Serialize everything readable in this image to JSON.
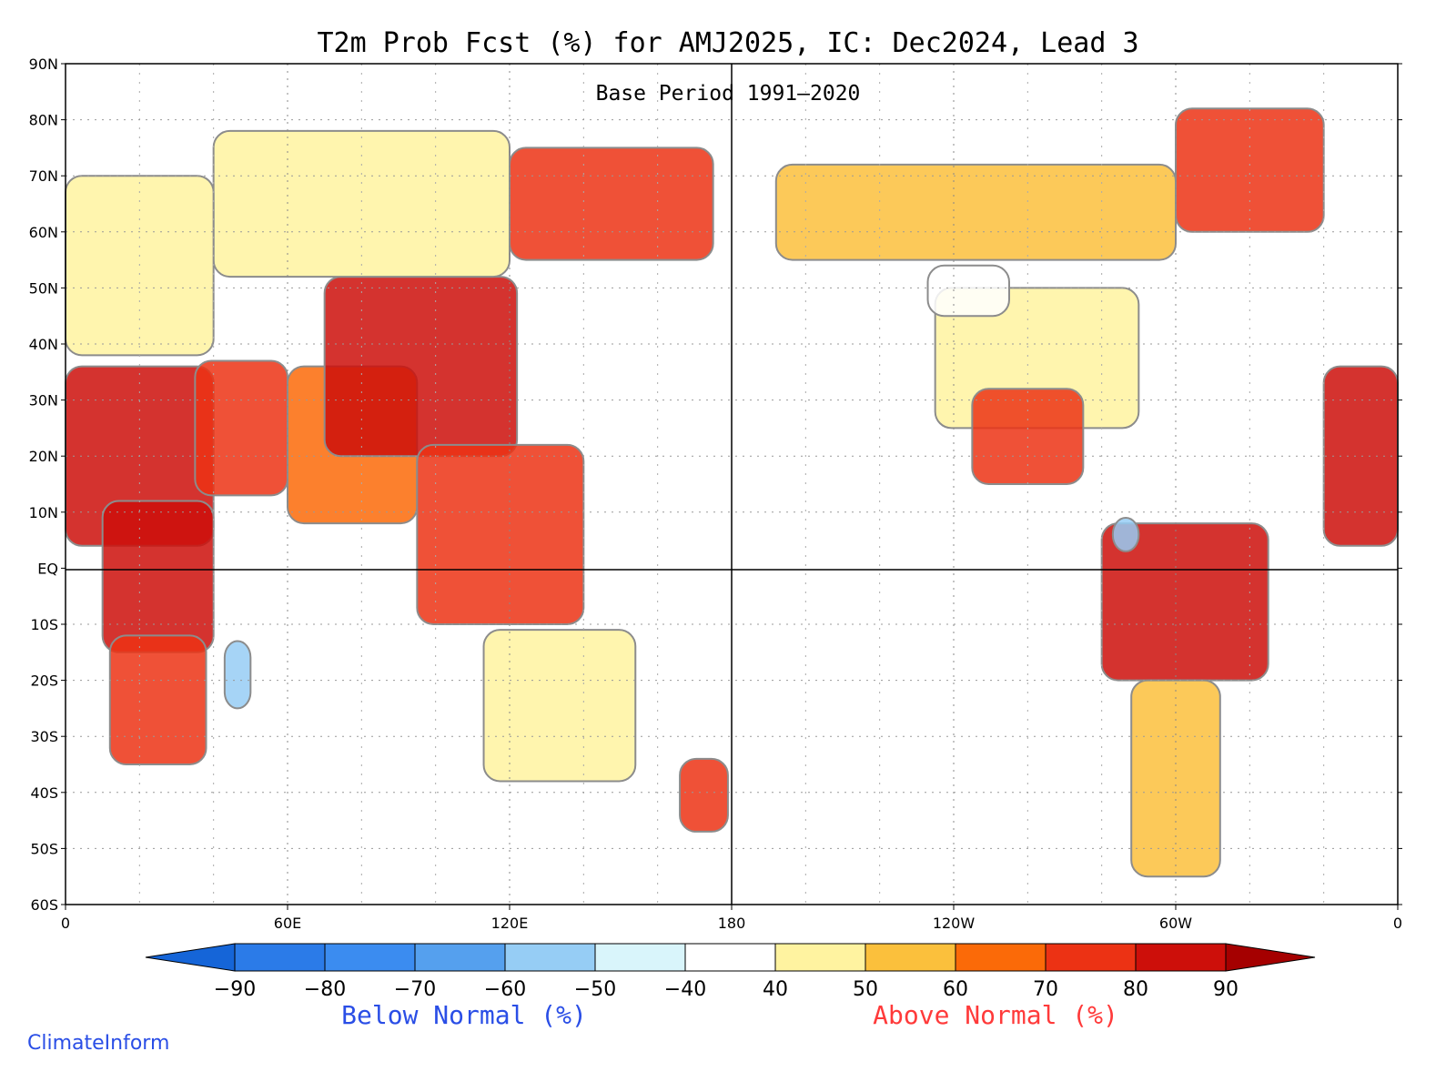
{
  "chart_data": {
    "type": "heatmap",
    "title": "T2m Prob Fcst (%) for AMJ2025, IC: Dec2024, Lead 3",
    "subtitle": "Base Period 1991–2020",
    "x_axis": {
      "range": [
        0,
        360
      ],
      "ticks": [
        {
          "lon": 0,
          "label": "0"
        },
        {
          "lon": 60,
          "label": "60E"
        },
        {
          "lon": 120,
          "label": "120E"
        },
        {
          "lon": 180,
          "label": "180"
        },
        {
          "lon": 240,
          "label": "120W"
        },
        {
          "lon": 300,
          "label": "60W"
        },
        {
          "lon": 360,
          "label": "0"
        }
      ]
    },
    "y_axis": {
      "range": [
        -60,
        90
      ],
      "ticks": [
        {
          "lat": 90,
          "label": "90N"
        },
        {
          "lat": 80,
          "label": "80N"
        },
        {
          "lat": 70,
          "label": "70N"
        },
        {
          "lat": 60,
          "label": "60N"
        },
        {
          "lat": 50,
          "label": "50N"
        },
        {
          "lat": 40,
          "label": "40N"
        },
        {
          "lat": 30,
          "label": "30N"
        },
        {
          "lat": 20,
          "label": "20N"
        },
        {
          "lat": 10,
          "label": "10N"
        },
        {
          "lat": 0,
          "label": "EQ"
        },
        {
          "lat": -10,
          "label": "10S"
        },
        {
          "lat": -20,
          "label": "20S"
        },
        {
          "lat": -30,
          "label": "30S"
        },
        {
          "lat": -40,
          "label": "40S"
        },
        {
          "lat": -50,
          "label": "50S"
        },
        {
          "lat": -60,
          "label": "60S"
        }
      ]
    },
    "colorbar": {
      "min_arrow_color": "#1565d8",
      "max_arrow_color": "#a50000",
      "bins": [
        {
          "from": -90,
          "to": -80,
          "color": "#2b7be8"
        },
        {
          "from": -80,
          "to": -70,
          "color": "#3b8cf0"
        },
        {
          "from": -70,
          "to": -60,
          "color": "#55a0ee"
        },
        {
          "from": -60,
          "to": -50,
          "color": "#96cdf5"
        },
        {
          "from": -50,
          "to": -40,
          "color": "#d9f5fb"
        },
        {
          "from": -40,
          "to": 40,
          "color": "#ffffff"
        },
        {
          "from": 40,
          "to": 50,
          "color": "#fff3a0"
        },
        {
          "from": 50,
          "to": 60,
          "color": "#fbc03c"
        },
        {
          "from": 60,
          "to": 70,
          "color": "#fb6a08"
        },
        {
          "from": 70,
          "to": 80,
          "color": "#ec3214"
        },
        {
          "from": 80,
          "to": 90,
          "color": "#cd0f0a"
        }
      ],
      "labels": [
        "−90",
        "−80",
        "−70",
        "−60",
        "−50",
        "−40",
        "40",
        "50",
        "60",
        "70",
        "80",
        "90"
      ],
      "below_label": "Below Normal (%)",
      "above_label": "Above Normal (%)",
      "below_color": "#2a4ee6",
      "above_color": "#ff3a3a"
    },
    "regions": [
      {
        "name": "west-africa-sahel",
        "lon": [
          0,
          40
        ],
        "lat": [
          4,
          36
        ],
        "category": 80
      },
      {
        "name": "central-africa",
        "lon": [
          10,
          40
        ],
        "lat": [
          -15,
          12
        ],
        "category": 80
      },
      {
        "name": "southern-africa",
        "lon": [
          12,
          38
        ],
        "lat": [
          -35,
          -12
        ],
        "category": 70
      },
      {
        "name": "arabia-middle-east",
        "lon": [
          35,
          60
        ],
        "lat": [
          13,
          37
        ],
        "category": 70
      },
      {
        "name": "india-pakistan",
        "lon": [
          60,
          95
        ],
        "lat": [
          8,
          36
        ],
        "category": 60
      },
      {
        "name": "china-central-asia",
        "lon": [
          70,
          122
        ],
        "lat": [
          20,
          52
        ],
        "category": 80
      },
      {
        "name": "southeast-asia",
        "lon": [
          95,
          140
        ],
        "lat": [
          -10,
          22
        ],
        "category": 70
      },
      {
        "name": "siberia-east",
        "lon": [
          120,
          175
        ],
        "lat": [
          55,
          75
        ],
        "category": 70
      },
      {
        "name": "northern-eurasia",
        "lon": [
          40,
          120
        ],
        "lat": [
          52,
          78
        ],
        "category": 40
      },
      {
        "name": "europe",
        "lon": [
          0,
          40
        ],
        "lat": [
          38,
          70
        ],
        "category": 40
      },
      {
        "name": "australia",
        "lon": [
          113,
          154
        ],
        "lat": [
          -38,
          -11
        ],
        "category": 40
      },
      {
        "name": "new-zealand",
        "lon": [
          166,
          179
        ],
        "lat": [
          -47,
          -34
        ],
        "category": 70
      },
      {
        "name": "alaska-canada",
        "lon": [
          192,
          300
        ],
        "lat": [
          55,
          72
        ],
        "category": 50
      },
      {
        "name": "united-states",
        "lon": [
          235,
          290
        ],
        "lat": [
          25,
          50
        ],
        "category": 40
      },
      {
        "name": "mexico",
        "lon": [
          245,
          275
        ],
        "lat": [
          15,
          32
        ],
        "category": 70
      },
      {
        "name": "amazon-brazil",
        "lon": [
          280,
          325
        ],
        "lat": [
          -20,
          8
        ],
        "category": 80
      },
      {
        "name": "southern-south-america",
        "lon": [
          288,
          312
        ],
        "lat": [
          -55,
          -20
        ],
        "category": 50
      },
      {
        "name": "greenland",
        "lon": [
          300,
          340
        ],
        "lat": [
          60,
          82
        ],
        "category": 70
      },
      {
        "name": "west-africa-west-edge",
        "lon": [
          340,
          360
        ],
        "lat": [
          4,
          36
        ],
        "category": 80
      },
      {
        "name": "western-canada-us-cool",
        "lon": [
          233,
          255
        ],
        "lat": [
          45,
          54
        ],
        "category": -40
      },
      {
        "name": "colombia-cool",
        "lon": [
          283,
          290
        ],
        "lat": [
          3,
          9
        ],
        "category": -60
      },
      {
        "name": "madagascar-cool",
        "lon": [
          43,
          50
        ],
        "lat": [
          -25,
          -13
        ],
        "category": -60
      }
    ]
  },
  "credit": "ClimateInform"
}
